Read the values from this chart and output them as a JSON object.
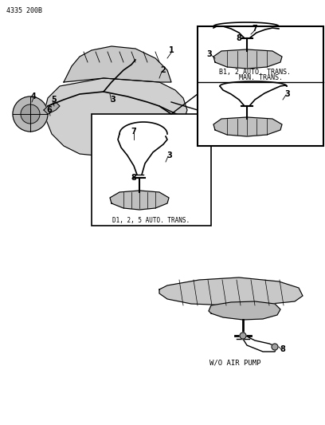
{
  "page_code": "4335 200B",
  "background_color": "#ffffff",
  "line_color": "#000000",
  "text_color": "#000000",
  "inset_labels": {
    "bottom_left": "D1, 2, 5 AUTO. TRANS.",
    "top_right_top": "MAN. TRANS.",
    "top_right_bottom": "B1, 2 AUTO. TRANS.",
    "bottom_diagram": "W/O AIR PUMP"
  },
  "page_id": "4335 200B"
}
